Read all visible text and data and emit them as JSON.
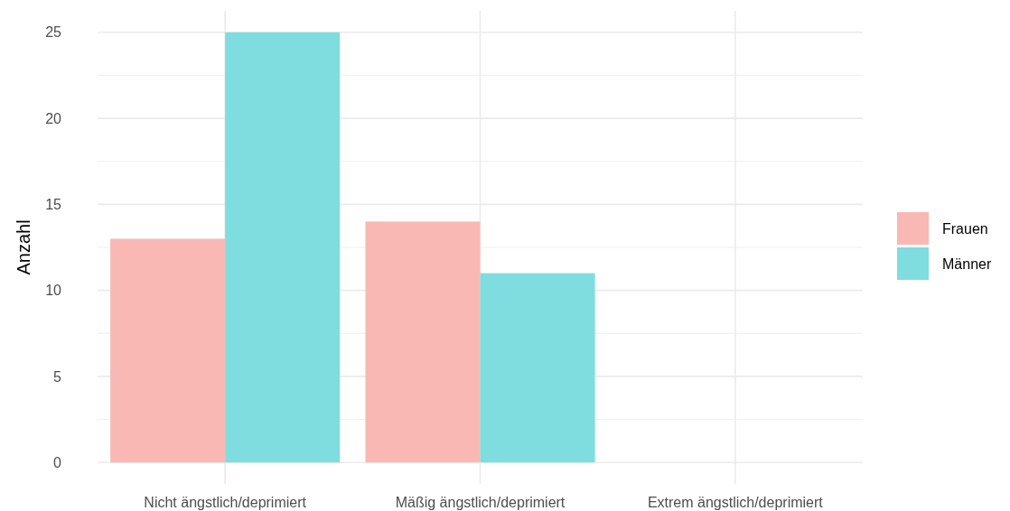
{
  "chart_data": {
    "type": "bar",
    "ylabel": "Anzahl",
    "categories": [
      "Nicht ängstlich/deprimiert",
      "Mäßig ängstlich/deprimiert",
      "Extrem ängstlich/deprimiert"
    ],
    "series": [
      {
        "name": "Frauen",
        "color": "#f9b8b3",
        "values": [
          13,
          14,
          null
        ]
      },
      {
        "name": "Männer",
        "color": "#7fdde0",
        "values": [
          25,
          11,
          null
        ]
      }
    ],
    "ylim": [
      -1.25,
      26.25
    ],
    "yticks": [
      0,
      {
        "value": 2.5,
        "label": null
      },
      5,
      {
        "value": 7.5,
        "label": null
      },
      10,
      {
        "value": 12.5,
        "label": null
      },
      15,
      {
        "value": 17.5,
        "label": null
      },
      20,
      {
        "value": 22.5,
        "label": null
      },
      25
    ],
    "grid": true,
    "legend": "right"
  }
}
